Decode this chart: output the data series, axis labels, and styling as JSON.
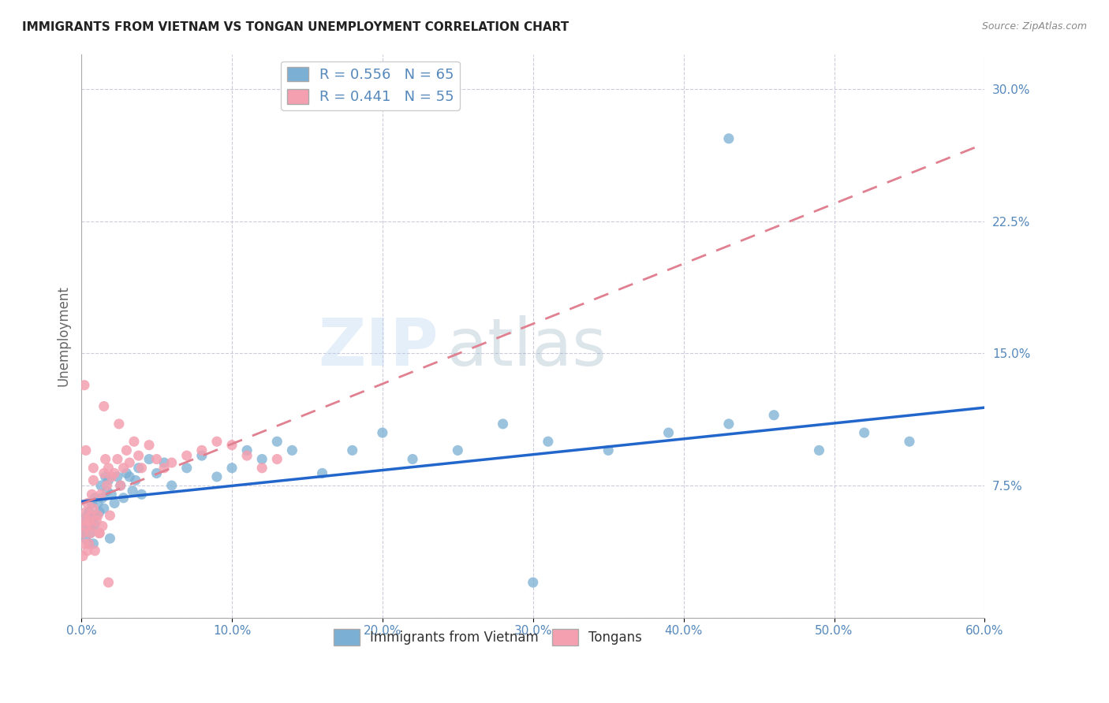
{
  "title": "IMMIGRANTS FROM VIETNAM VS TONGAN UNEMPLOYMENT CORRELATION CHART",
  "source": "Source: ZipAtlas.com",
  "ylabel": "Unemployment",
  "x_min": 0.0,
  "x_max": 0.6,
  "y_min": 0.0,
  "y_max": 0.32,
  "x_ticks": [
    0.0,
    0.1,
    0.2,
    0.3,
    0.4,
    0.5,
    0.6
  ],
  "x_tick_labels": [
    "0.0%",
    "10.0%",
    "20.0%",
    "30.0%",
    "40.0%",
    "50.0%",
    "60.0%"
  ],
  "y_ticks": [
    0.0,
    0.075,
    0.15,
    0.225,
    0.3
  ],
  "y_tick_labels": [
    "",
    "7.5%",
    "15.0%",
    "22.5%",
    "30.0%"
  ],
  "blue_R": 0.556,
  "blue_N": 65,
  "pink_R": 0.441,
  "pink_N": 55,
  "blue_color": "#7BAFD4",
  "pink_color": "#F4A0B0",
  "trend_blue_color": "#2266CC",
  "trend_pink_color": "#E08090",
  "axis_color": "#5588BB",
  "legend_label_blue": "Immigrants from Vietnam",
  "legend_label_pink": "Tongans",
  "watermark": "ZIPatlas",
  "background_color": "#FFFFFF",
  "grid_color": "#CCCCDD",
  "title_color": "#222222",
  "blue_scatter_x": [
    0.001,
    0.002,
    0.003,
    0.003,
    0.004,
    0.004,
    0.005,
    0.005,
    0.006,
    0.006,
    0.007,
    0.007,
    0.008,
    0.008,
    0.009,
    0.009,
    0.01,
    0.011,
    0.012,
    0.013,
    0.014,
    0.015,
    0.016,
    0.017,
    0.018,
    0.019,
    0.02,
    0.022,
    0.024,
    0.026,
    0.028,
    0.03,
    0.032,
    0.034,
    0.036,
    0.038,
    0.04,
    0.045,
    0.05,
    0.055,
    0.06,
    0.07,
    0.08,
    0.09,
    0.1,
    0.11,
    0.12,
    0.13,
    0.14,
    0.16,
    0.18,
    0.2,
    0.22,
    0.25,
    0.28,
    0.31,
    0.35,
    0.39,
    0.43,
    0.46,
    0.49,
    0.52,
    0.55,
    0.43,
    0.3
  ],
  "blue_scatter_y": [
    0.048,
    0.05,
    0.045,
    0.055,
    0.052,
    0.058,
    0.042,
    0.06,
    0.055,
    0.048,
    0.052,
    0.065,
    0.058,
    0.042,
    0.068,
    0.053,
    0.058,
    0.065,
    0.06,
    0.075,
    0.068,
    0.062,
    0.08,
    0.072,
    0.078,
    0.045,
    0.07,
    0.065,
    0.08,
    0.075,
    0.068,
    0.082,
    0.08,
    0.072,
    0.078,
    0.085,
    0.07,
    0.09,
    0.082,
    0.088,
    0.075,
    0.085,
    0.092,
    0.08,
    0.085,
    0.095,
    0.09,
    0.1,
    0.095,
    0.082,
    0.095,
    0.105,
    0.09,
    0.095,
    0.11,
    0.1,
    0.095,
    0.105,
    0.11,
    0.115,
    0.095,
    0.105,
    0.1,
    0.272,
    0.02
  ],
  "pink_scatter_x": [
    0.001,
    0.001,
    0.002,
    0.002,
    0.003,
    0.003,
    0.004,
    0.004,
    0.005,
    0.005,
    0.006,
    0.006,
    0.007,
    0.007,
    0.008,
    0.008,
    0.009,
    0.01,
    0.011,
    0.012,
    0.013,
    0.014,
    0.015,
    0.016,
    0.017,
    0.018,
    0.019,
    0.02,
    0.022,
    0.024,
    0.026,
    0.028,
    0.03,
    0.032,
    0.035,
    0.038,
    0.04,
    0.045,
    0.05,
    0.055,
    0.06,
    0.07,
    0.08,
    0.09,
    0.1,
    0.11,
    0.12,
    0.13,
    0.015,
    0.025,
    0.008,
    0.012,
    0.018,
    0.002,
    0.003
  ],
  "pink_scatter_y": [
    0.035,
    0.048,
    0.055,
    0.042,
    0.06,
    0.052,
    0.038,
    0.065,
    0.042,
    0.055,
    0.058,
    0.048,
    0.07,
    0.052,
    0.078,
    0.062,
    0.038,
    0.055,
    0.058,
    0.048,
    0.07,
    0.052,
    0.082,
    0.09,
    0.075,
    0.085,
    0.058,
    0.08,
    0.082,
    0.09,
    0.075,
    0.085,
    0.095,
    0.088,
    0.1,
    0.092,
    0.085,
    0.098,
    0.09,
    0.085,
    0.088,
    0.092,
    0.095,
    0.1,
    0.098,
    0.092,
    0.085,
    0.09,
    0.12,
    0.11,
    0.085,
    0.048,
    0.02,
    0.132,
    0.095
  ]
}
